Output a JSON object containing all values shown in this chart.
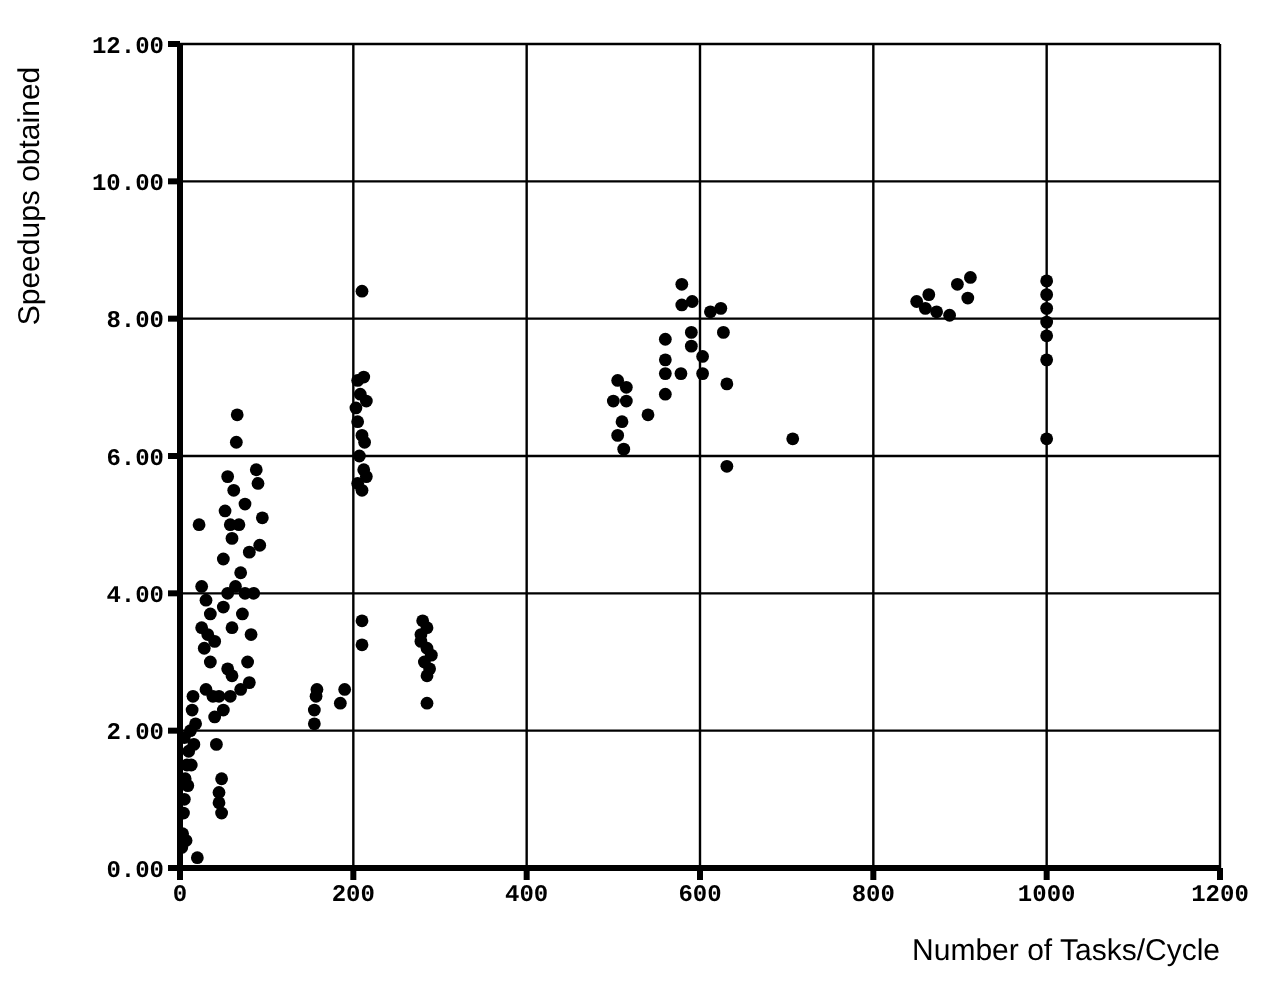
{
  "chart_data": {
    "type": "scatter",
    "xlabel": "Number of Tasks/Cycle",
    "ylabel": "Speedups obtained",
    "x": [
      2,
      3,
      4,
      5,
      6,
      8,
      10,
      12,
      14,
      15,
      5,
      9,
      13,
      16,
      18,
      7,
      20,
      22,
      25,
      25,
      28,
      30,
      30,
      35,
      35,
      40,
      40,
      42,
      45,
      45,
      48,
      48,
      45,
      50,
      52,
      55,
      55,
      58,
      60,
      60,
      62,
      65,
      66,
      68,
      70,
      72,
      75,
      78,
      80,
      80,
      85,
      88,
      90,
      95,
      92,
      70,
      55,
      50,
      64,
      75,
      82,
      58,
      50,
      38,
      32,
      60,
      155,
      155,
      157,
      158,
      185,
      190,
      210,
      205,
      212,
      208,
      215,
      205,
      210,
      207,
      212,
      205,
      215,
      210,
      210,
      210,
      203,
      213,
      280,
      285,
      278,
      285,
      282,
      288,
      285,
      285,
      278,
      290,
      500,
      505,
      515,
      510,
      505,
      512,
      540,
      515,
      560,
      560,
      560,
      560,
      579,
      579,
      591,
      590,
      590,
      578,
      603,
      603,
      624,
      627,
      631,
      631,
      707,
      612,
      850,
      864,
      873,
      888,
      897,
      912,
      909,
      860,
      1000,
      1000,
      1000,
      1000,
      1000,
      1000,
      1000
    ],
    "values": [
      0.3,
      0.5,
      0.8,
      1.0,
      1.3,
      1.5,
      1.7,
      2.0,
      2.3,
      2.5,
      1.9,
      1.2,
      1.5,
      1.8,
      2.1,
      0.4,
      0.15,
      5.0,
      4.1,
      3.5,
      3.2,
      2.6,
      3.9,
      3.0,
      3.7,
      2.2,
      3.3,
      1.8,
      2.5,
      1.1,
      0.8,
      1.3,
      0.95,
      4.5,
      5.2,
      5.7,
      4.0,
      2.5,
      3.5,
      4.8,
      5.5,
      6.2,
      6.6,
      5.0,
      4.3,
      3.7,
      5.3,
      3.0,
      2.7,
      4.6,
      4.0,
      5.8,
      5.6,
      5.1,
      4.7,
      2.6,
      2.9,
      3.8,
      4.1,
      4.0,
      3.4,
      5.0,
      2.3,
      2.5,
      3.4,
      2.8,
      2.1,
      2.3,
      2.5,
      2.6,
      2.4,
      2.6,
      8.4,
      7.1,
      7.15,
      6.9,
      6.8,
      6.5,
      6.3,
      6.0,
      5.8,
      5.6,
      5.7,
      5.5,
      3.6,
      3.25,
      6.7,
      6.2,
      3.6,
      3.5,
      3.3,
      3.2,
      3.0,
      2.9,
      2.8,
      2.4,
      3.4,
      3.1,
      6.8,
      7.1,
      7.0,
      6.5,
      6.3,
      6.1,
      6.6,
      6.8,
      7.7,
      7.4,
      7.2,
      6.9,
      8.5,
      8.2,
      8.25,
      7.8,
      7.6,
      7.2,
      7.45,
      7.2,
      8.15,
      7.8,
      7.05,
      5.85,
      6.25,
      8.1,
      8.25,
      8.35,
      8.1,
      8.05,
      8.5,
      8.6,
      8.3,
      8.15,
      8.55,
      8.35,
      8.15,
      7.95,
      7.75,
      7.4,
      6.25
    ],
    "color": "#000000",
    "marker": "circle",
    "grid": true,
    "xlim": [
      0,
      1200
    ],
    "xticks": [
      0,
      200,
      400,
      600,
      800,
      1000,
      1200
    ],
    "ylim": [
      0,
      12
    ],
    "yticks": [
      {
        "value": 0,
        "label": "0.00"
      },
      {
        "value": 2,
        "label": "2.00"
      },
      {
        "value": 4,
        "label": "4.00"
      },
      {
        "value": 6,
        "label": "6.00"
      },
      {
        "value": 8,
        "label": "8.00"
      },
      {
        "value": 10,
        "label": "10.00"
      },
      {
        "value": 12,
        "label": "12.00"
      }
    ]
  }
}
